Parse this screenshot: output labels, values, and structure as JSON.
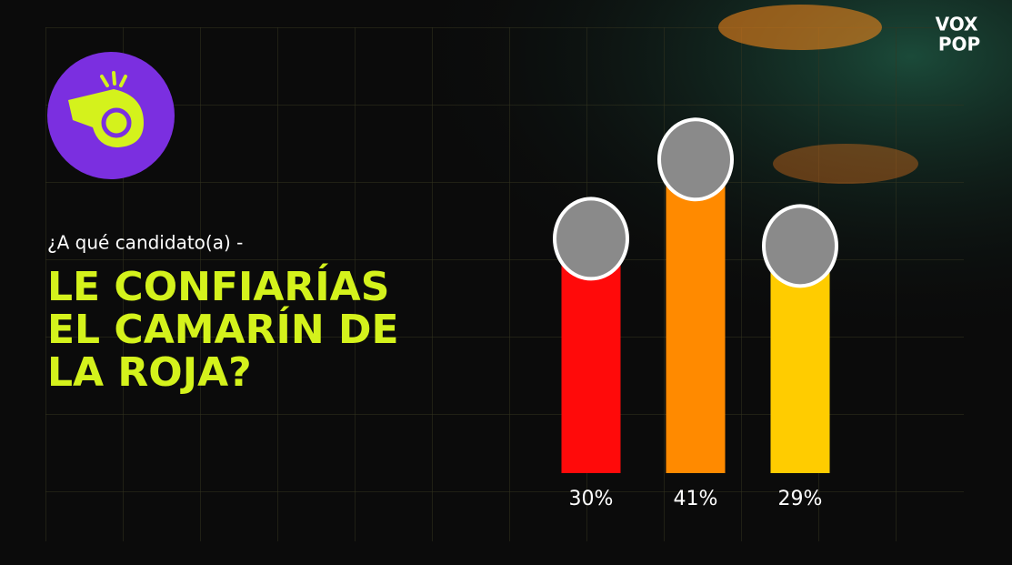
{
  "logo": [
    "VOX",
    "POP"
  ],
  "chart_data": {
    "type": "bar",
    "subtitle": "¿A qué candidato(a) -",
    "title": [
      "LE CONFIARÍAS",
      "EL CAMARÍN DE",
      "LA ROJA?"
    ],
    "categories": [
      null,
      null,
      null
    ],
    "values": [
      30,
      41,
      29
    ],
    "value_labels": [
      "30%",
      "41%",
      "29%"
    ],
    "colors": [
      "#ff0a0a",
      "#ff8a00",
      "#ffcc00"
    ],
    "ylim": [
      0,
      50
    ]
  }
}
